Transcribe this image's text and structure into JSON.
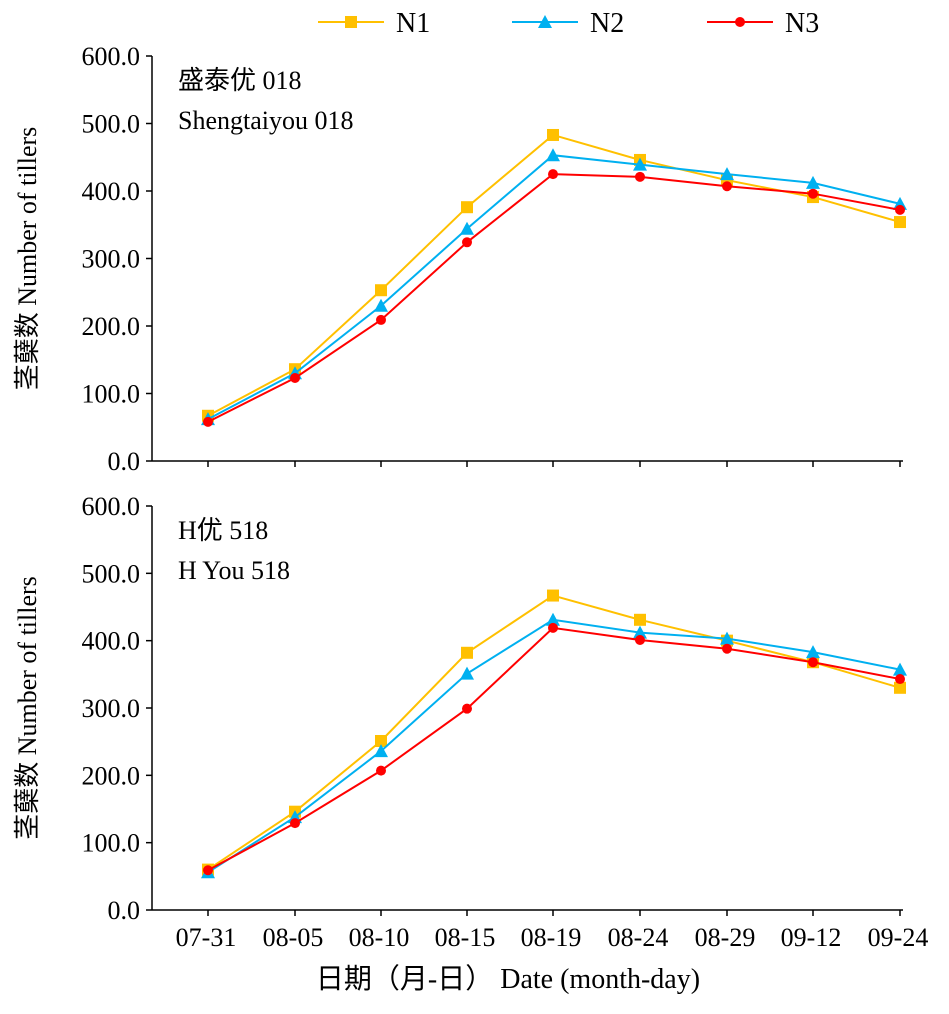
{
  "chart_data": {
    "type": "line",
    "categories": [
      "07-31",
      "08-05",
      "08-10",
      "08-15",
      "08-19",
      "08-24",
      "08-29",
      "09-12",
      "09-24"
    ],
    "xlabel": "日期（月-日） Date (month-day)",
    "ylabel": "茎蘖数 Number of tillers",
    "ylim": [
      0,
      600
    ],
    "yticks": [
      "0.0",
      "100.0",
      "200.0",
      "300.0",
      "400.0",
      "500.0",
      "600.0"
    ],
    "legend": {
      "placement": "top",
      "entries": [
        "N1",
        "N2",
        "N3"
      ]
    },
    "colors": {
      "N1": "#FFC000",
      "N2": "#00B0F0",
      "N3": "#FF0000"
    },
    "panels": [
      {
        "title_cn": "盛泰优 018",
        "title_en": "Shengtaiyou 018",
        "series": [
          {
            "name": "N1",
            "values": [
              67,
              136,
              253,
              376,
              483,
              446,
              416,
              391,
              354
            ]
          },
          {
            "name": "N2",
            "values": [
              62,
              130,
              230,
              344,
              453,
              439,
              425,
              412,
              381
            ]
          },
          {
            "name": "N3",
            "values": [
              58,
              123,
              209,
              324,
              425,
              421,
              407,
              396,
              372
            ]
          }
        ]
      },
      {
        "title_cn": "H优 518",
        "title_en": "H You 518",
        "series": [
          {
            "name": "N1",
            "values": [
              60,
              146,
              251,
              382,
              467,
              431,
              400,
              368,
              330
            ]
          },
          {
            "name": "N2",
            "values": [
              56,
              138,
              236,
              351,
              431,
              412,
              403,
              383,
              357
            ]
          },
          {
            "name": "N3",
            "values": [
              59,
              129,
              207,
              299,
              419,
              401,
              388,
              368,
              343
            ]
          }
        ]
      }
    ]
  }
}
